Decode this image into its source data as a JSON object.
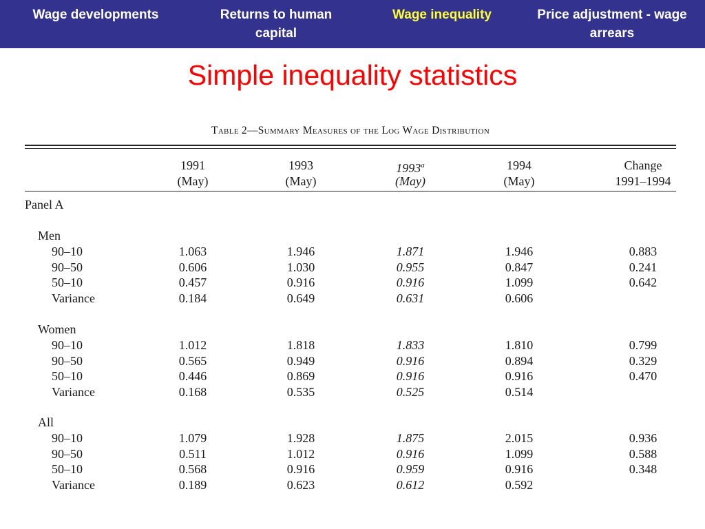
{
  "nav": {
    "items": [
      {
        "label": "Wage developments",
        "active": false
      },
      {
        "label": "Returns to human capital",
        "active": false
      },
      {
        "label": "Wage inequality",
        "active": true
      },
      {
        "label": "Price adjustment - wage arrears",
        "active": false
      }
    ],
    "colors": {
      "bar": "#33338f",
      "active": "#ffff33",
      "text": "#ffffff"
    }
  },
  "title": "Simple inequality statistics",
  "table": {
    "caption": "Table 2—Summary Measures of the Log Wage Distribution",
    "columns": [
      {
        "line1": "1991",
        "line2": "(May)",
        "italic": false
      },
      {
        "line1": "1993",
        "line2": "(May)",
        "italic": false
      },
      {
        "line1": "1993",
        "sup": "a",
        "line2": "(May)",
        "italic": true
      },
      {
        "line1": "1994",
        "line2": "(May)",
        "italic": false
      },
      {
        "line1": "Change",
        "line2": "1991–1994",
        "italic": false
      }
    ],
    "panel": "Panel A",
    "groups": [
      {
        "name": "Men",
        "rows": [
          {
            "label": "90–10",
            "values": [
              "1.063",
              "1.946",
              "1.871",
              "1.946",
              "0.883"
            ]
          },
          {
            "label": "90–50",
            "values": [
              "0.606",
              "1.030",
              "0.955",
              "0.847",
              "0.241"
            ]
          },
          {
            "label": "50–10",
            "values": [
              "0.457",
              "0.916",
              "0.916",
              "1.099",
              "0.642"
            ]
          },
          {
            "label": "Variance",
            "values": [
              "0.184",
              "0.649",
              "0.631",
              "0.606",
              ""
            ]
          }
        ]
      },
      {
        "name": "Women",
        "rows": [
          {
            "label": "90–10",
            "values": [
              "1.012",
              "1.818",
              "1.833",
              "1.810",
              "0.799"
            ]
          },
          {
            "label": "90–50",
            "values": [
              "0.565",
              "0.949",
              "0.916",
              "0.894",
              "0.329"
            ]
          },
          {
            "label": "50–10",
            "values": [
              "0.446",
              "0.869",
              "0.916",
              "0.916",
              "0.470"
            ]
          },
          {
            "label": "Variance",
            "values": [
              "0.168",
              "0.535",
              "0.525",
              "0.514",
              ""
            ]
          }
        ]
      },
      {
        "name": "All",
        "rows": [
          {
            "label": "90–10",
            "values": [
              "1.079",
              "1.928",
              "1.875",
              "2.015",
              "0.936"
            ]
          },
          {
            "label": "90–50",
            "values": [
              "0.511",
              "1.012",
              "0.916",
              "1.099",
              "0.588"
            ]
          },
          {
            "label": "50–10",
            "values": [
              "0.568",
              "0.916",
              "0.959",
              "0.916",
              "0.348"
            ]
          },
          {
            "label": "Variance",
            "values": [
              "0.189",
              "0.623",
              "0.612",
              "0.592",
              ""
            ]
          }
        ]
      }
    ]
  }
}
